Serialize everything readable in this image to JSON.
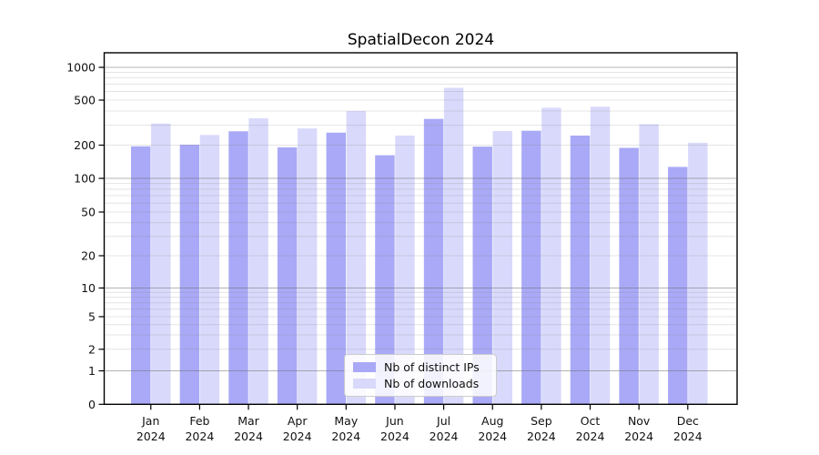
{
  "chart_data": {
    "type": "bar",
    "title": "SpatialDecon 2024",
    "year": "2024",
    "categories": [
      "Jan",
      "Feb",
      "Mar",
      "Apr",
      "May",
      "Jun",
      "Jul",
      "Aug",
      "Sep",
      "Oct",
      "Nov",
      "Dec"
    ],
    "series": [
      {
        "name": "Nb of distinct IPs",
        "color": "#a9a9f7",
        "values": [
          195,
          202,
          265,
          191,
          258,
          162,
          341,
          194,
          268,
          243,
          189,
          127
        ]
      },
      {
        "name": "Nb of downloads",
        "color": "#d9d9fb",
        "values": [
          310,
          246,
          345,
          281,
          400,
          243,
          648,
          266,
          428,
          437,
          306,
          210
        ]
      }
    ],
    "yticks": [
      0,
      1,
      2,
      5,
      10,
      20,
      50,
      100,
      200,
      500,
      1000
    ],
    "yscale": "symlog",
    "ylim": [
      0,
      1000
    ],
    "xlabel": "",
    "ylabel": "",
    "grid": true,
    "legend_position": "lower center"
  }
}
